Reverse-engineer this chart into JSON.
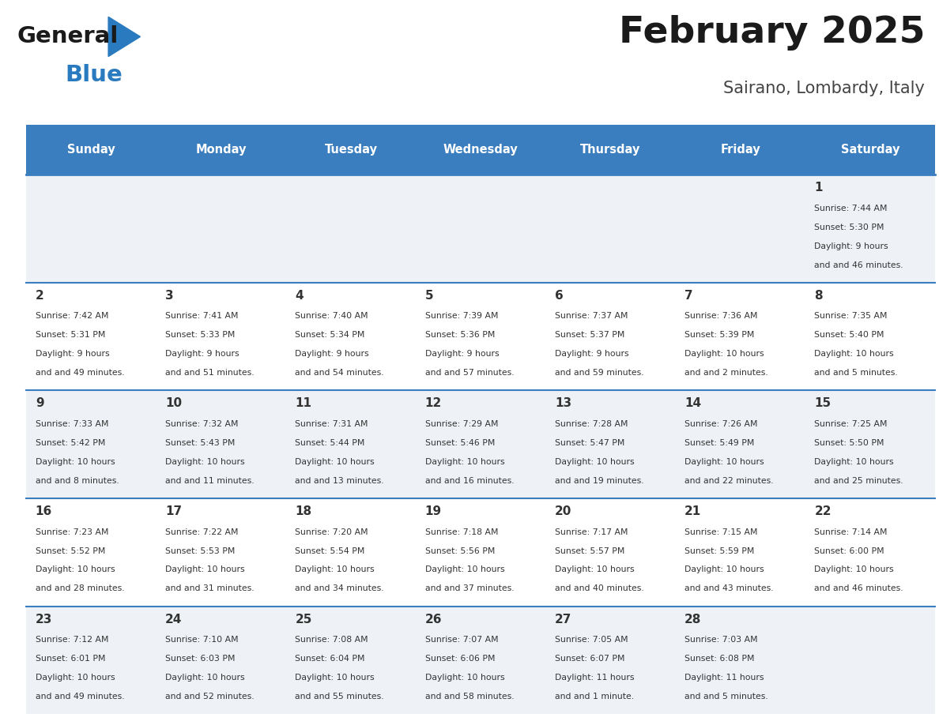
{
  "title": "February 2025",
  "subtitle": "Sairano, Lombardy, Italy",
  "header_bg": "#3a7ebf",
  "header_text_color": "#ffffff",
  "cell_bg_odd": "#eef2f7",
  "cell_bg_even": "#ffffff",
  "day_headers": [
    "Sunday",
    "Monday",
    "Tuesday",
    "Wednesday",
    "Thursday",
    "Friday",
    "Saturday"
  ],
  "days": [
    {
      "day": 1,
      "col": 6,
      "row": 0,
      "sunrise": "7:44 AM",
      "sunset": "5:30 PM",
      "daylight": "9 hours and 46 minutes."
    },
    {
      "day": 2,
      "col": 0,
      "row": 1,
      "sunrise": "7:42 AM",
      "sunset": "5:31 PM",
      "daylight": "9 hours and 49 minutes."
    },
    {
      "day": 3,
      "col": 1,
      "row": 1,
      "sunrise": "7:41 AM",
      "sunset": "5:33 PM",
      "daylight": "9 hours and 51 minutes."
    },
    {
      "day": 4,
      "col": 2,
      "row": 1,
      "sunrise": "7:40 AM",
      "sunset": "5:34 PM",
      "daylight": "9 hours and 54 minutes."
    },
    {
      "day": 5,
      "col": 3,
      "row": 1,
      "sunrise": "7:39 AM",
      "sunset": "5:36 PM",
      "daylight": "9 hours and 57 minutes."
    },
    {
      "day": 6,
      "col": 4,
      "row": 1,
      "sunrise": "7:37 AM",
      "sunset": "5:37 PM",
      "daylight": "9 hours and 59 minutes."
    },
    {
      "day": 7,
      "col": 5,
      "row": 1,
      "sunrise": "7:36 AM",
      "sunset": "5:39 PM",
      "daylight": "10 hours and 2 minutes."
    },
    {
      "day": 8,
      "col": 6,
      "row": 1,
      "sunrise": "7:35 AM",
      "sunset": "5:40 PM",
      "daylight": "10 hours and 5 minutes."
    },
    {
      "day": 9,
      "col": 0,
      "row": 2,
      "sunrise": "7:33 AM",
      "sunset": "5:42 PM",
      "daylight": "10 hours and 8 minutes."
    },
    {
      "day": 10,
      "col": 1,
      "row": 2,
      "sunrise": "7:32 AM",
      "sunset": "5:43 PM",
      "daylight": "10 hours and 11 minutes."
    },
    {
      "day": 11,
      "col": 2,
      "row": 2,
      "sunrise": "7:31 AM",
      "sunset": "5:44 PM",
      "daylight": "10 hours and 13 minutes."
    },
    {
      "day": 12,
      "col": 3,
      "row": 2,
      "sunrise": "7:29 AM",
      "sunset": "5:46 PM",
      "daylight": "10 hours and 16 minutes."
    },
    {
      "day": 13,
      "col": 4,
      "row": 2,
      "sunrise": "7:28 AM",
      "sunset": "5:47 PM",
      "daylight": "10 hours and 19 minutes."
    },
    {
      "day": 14,
      "col": 5,
      "row": 2,
      "sunrise": "7:26 AM",
      "sunset": "5:49 PM",
      "daylight": "10 hours and 22 minutes."
    },
    {
      "day": 15,
      "col": 6,
      "row": 2,
      "sunrise": "7:25 AM",
      "sunset": "5:50 PM",
      "daylight": "10 hours and 25 minutes."
    },
    {
      "day": 16,
      "col": 0,
      "row": 3,
      "sunrise": "7:23 AM",
      "sunset": "5:52 PM",
      "daylight": "10 hours and 28 minutes."
    },
    {
      "day": 17,
      "col": 1,
      "row": 3,
      "sunrise": "7:22 AM",
      "sunset": "5:53 PM",
      "daylight": "10 hours and 31 minutes."
    },
    {
      "day": 18,
      "col": 2,
      "row": 3,
      "sunrise": "7:20 AM",
      "sunset": "5:54 PM",
      "daylight": "10 hours and 34 minutes."
    },
    {
      "day": 19,
      "col": 3,
      "row": 3,
      "sunrise": "7:18 AM",
      "sunset": "5:56 PM",
      "daylight": "10 hours and 37 minutes."
    },
    {
      "day": 20,
      "col": 4,
      "row": 3,
      "sunrise": "7:17 AM",
      "sunset": "5:57 PM",
      "daylight": "10 hours and 40 minutes."
    },
    {
      "day": 21,
      "col": 5,
      "row": 3,
      "sunrise": "7:15 AM",
      "sunset": "5:59 PM",
      "daylight": "10 hours and 43 minutes."
    },
    {
      "day": 22,
      "col": 6,
      "row": 3,
      "sunrise": "7:14 AM",
      "sunset": "6:00 PM",
      "daylight": "10 hours and 46 minutes."
    },
    {
      "day": 23,
      "col": 0,
      "row": 4,
      "sunrise": "7:12 AM",
      "sunset": "6:01 PM",
      "daylight": "10 hours and 49 minutes."
    },
    {
      "day": 24,
      "col": 1,
      "row": 4,
      "sunrise": "7:10 AM",
      "sunset": "6:03 PM",
      "daylight": "10 hours and 52 minutes."
    },
    {
      "day": 25,
      "col": 2,
      "row": 4,
      "sunrise": "7:08 AM",
      "sunset": "6:04 PM",
      "daylight": "10 hours and 55 minutes."
    },
    {
      "day": 26,
      "col": 3,
      "row": 4,
      "sunrise": "7:07 AM",
      "sunset": "6:06 PM",
      "daylight": "10 hours and 58 minutes."
    },
    {
      "day": 27,
      "col": 4,
      "row": 4,
      "sunrise": "7:05 AM",
      "sunset": "6:07 PM",
      "daylight": "11 hours and 1 minute."
    },
    {
      "day": 28,
      "col": 5,
      "row": 4,
      "sunrise": "7:03 AM",
      "sunset": "6:08 PM",
      "daylight": "11 hours and 5 minutes."
    }
  ],
  "num_rows": 5,
  "num_cols": 7,
  "line_color": "#3a7ebf",
  "day_num_color": "#333333",
  "text_color": "#333333",
  "logo_general_color": "#1a1a1a",
  "logo_blue_color": "#2a7abf"
}
